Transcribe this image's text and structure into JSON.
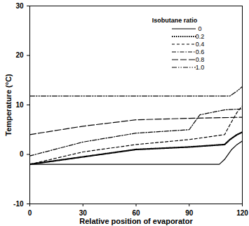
{
  "chart_data": {
    "type": "line",
    "x_label": "Relative position of evaporator",
    "y_label": "Temperature (°C)",
    "legend_title": "Isobutane ratio",
    "legend": "top-right",
    "xlim": [
      0,
      120
    ],
    "xticks": [
      0,
      30,
      60,
      90,
      120
    ],
    "ylim": [
      -10,
      30
    ],
    "yticks": [
      -10,
      0,
      10,
      20,
      30
    ],
    "series": [
      {
        "name": "0",
        "color": "#000000",
        "line_style": "solid",
        "x": [
          0,
          107,
          110,
          114,
          117,
          120
        ],
        "values": [
          -2,
          -2,
          -1,
          1,
          2,
          2.7
        ]
      },
      {
        "name": "0.2",
        "color": "#000000",
        "line_style": "dotted",
        "x": [
          0,
          30,
          60,
          90,
          110,
          113,
          117,
          120
        ],
        "values": [
          -2,
          -0.5,
          1,
          1.5,
          2,
          3,
          4,
          4.5
        ]
      },
      {
        "name": "0.4",
        "color": "#000000",
        "line_style": "dashed",
        "x": [
          0,
          30,
          60,
          90,
          110,
          113,
          117,
          120
        ],
        "values": [
          -2,
          0.5,
          2,
          3,
          4,
          6,
          8.5,
          9.8
        ]
      },
      {
        "name": "0.6",
        "color": "#000000",
        "line_style": "dashdot",
        "x": [
          0,
          30,
          60,
          90,
          92,
          96,
          110,
          120
        ],
        "values": [
          -0.3,
          2.5,
          4.3,
          5,
          6,
          8,
          9,
          9.2
        ]
      },
      {
        "name": "0.8",
        "color": "#000000",
        "line_style": "longdash",
        "x": [
          0,
          30,
          60,
          90,
          120
        ],
        "values": [
          4,
          5.7,
          7,
          7.3,
          7.5
        ]
      },
      {
        "name": "1.0",
        "color": "#000000",
        "line_style": "dashdotdot",
        "x": [
          0,
          113,
          117,
          120
        ],
        "values": [
          11.8,
          11.8,
          12.8,
          13.7
        ]
      }
    ]
  }
}
